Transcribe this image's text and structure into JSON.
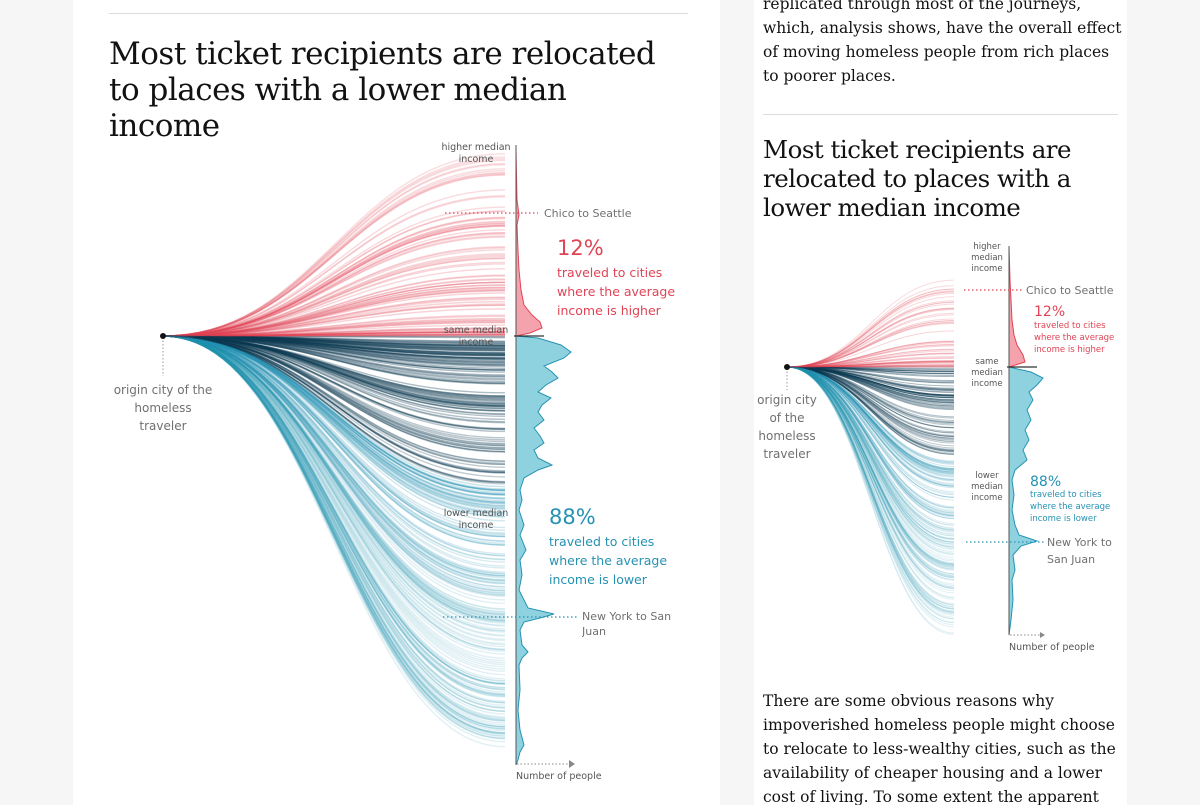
{
  "colors": {
    "red": "#e04455",
    "red_fill": "#f4a3ac",
    "blue": "#2592b3",
    "blue_fill": "#8ed2e0",
    "blue_dark": "#0d3a52",
    "gray_text": "#707070",
    "headline": "#121212"
  },
  "desktop": {
    "title": "Most ticket recipients are relocated to places with a lower median income",
    "labels": {
      "higher": "higher median income",
      "same": "same median income",
      "lower": "lower median income",
      "origin": "origin city of the homeless traveler",
      "xaxis": "Number of people",
      "chico": "Chico to Seattle",
      "newyork": "New York to San Juan"
    },
    "stats": {
      "higher_pct": "12%",
      "higher_text": "traveled to cities where the average income is higher",
      "lower_pct": "88%",
      "lower_text": "traveled to cities where the average income is lower"
    }
  },
  "mobile": {
    "intro": "replicated through most of the journeys, which, analysis shows, have the overall effect of moving homeless people from rich places to poorer places.",
    "title": "Most ticket recipients are relocated to places with a lower median income",
    "labels": {
      "higher": "higher median income",
      "same": "same median income",
      "lower": "lower median income",
      "origin": "origin city of the homeless traveler",
      "xaxis": "Number of people",
      "chico": "Chico to Seattle",
      "newyork": "New York to San Juan"
    },
    "stats": {
      "higher_pct": "12%",
      "higher_text": "traveled to cities where the average income is higher",
      "lower_pct": "88%",
      "lower_text": "traveled to cities where the average income is lower"
    },
    "paragraph": "There are some obvious reasons why impoverished homeless people might choose to relocate to less-wealthy cities, such as the availability of cheaper housing and a lower cost of living. To some extent the apparent"
  },
  "chart_data": [
    {
      "type": "area",
      "title": "Most ticket recipients are relocated to places with a lower median income",
      "xlabel": "Number of people",
      "ylabel": "",
      "y_categories": [
        "higher median income",
        "same median income",
        "lower median income"
      ],
      "series": [
        {
          "name": "traveled to cities where the average income is higher",
          "share_percent": 12
        },
        {
          "name": "traveled to cities where the average income is lower",
          "share_percent": 88
        }
      ],
      "annotations": [
        "Chico to Seattle",
        "New York to San Juan"
      ]
    }
  ]
}
